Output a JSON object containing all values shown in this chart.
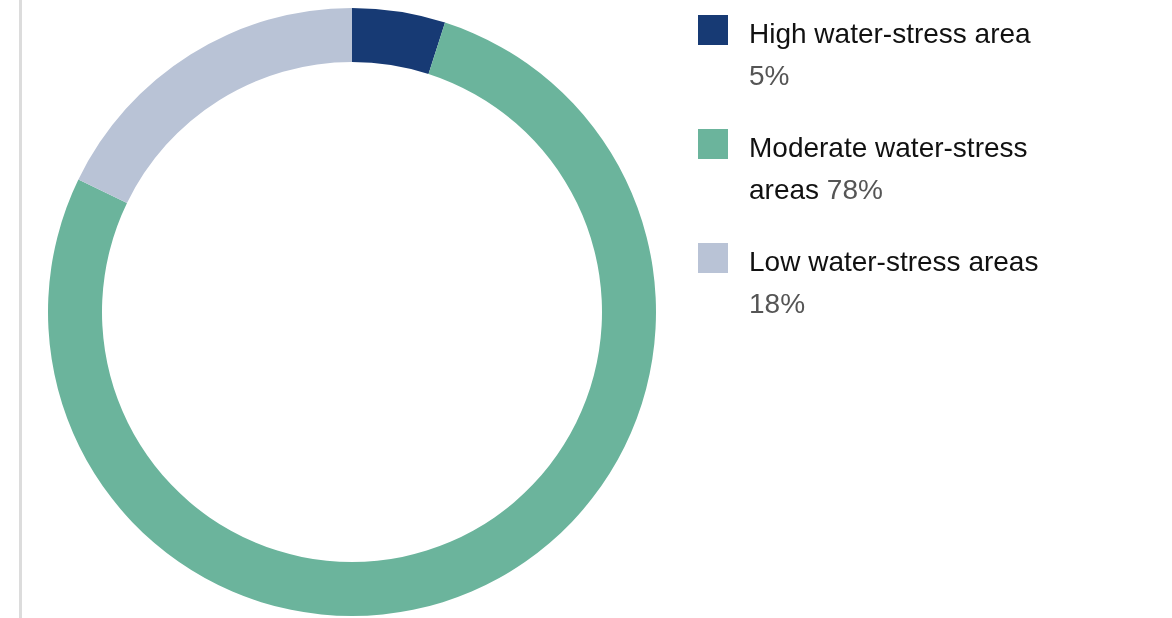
{
  "chart_data": {
    "type": "donut",
    "categories": [
      "High water-stress area",
      "Moderate water-stress areas",
      "Low water-stress areas"
    ],
    "values": [
      5,
      78,
      18
    ],
    "colors": [
      "#173a74",
      "#6bb49c",
      "#b9c3d6"
    ],
    "value_labels": [
      "5%",
      "78%",
      "18%"
    ],
    "legend": "right"
  }
}
